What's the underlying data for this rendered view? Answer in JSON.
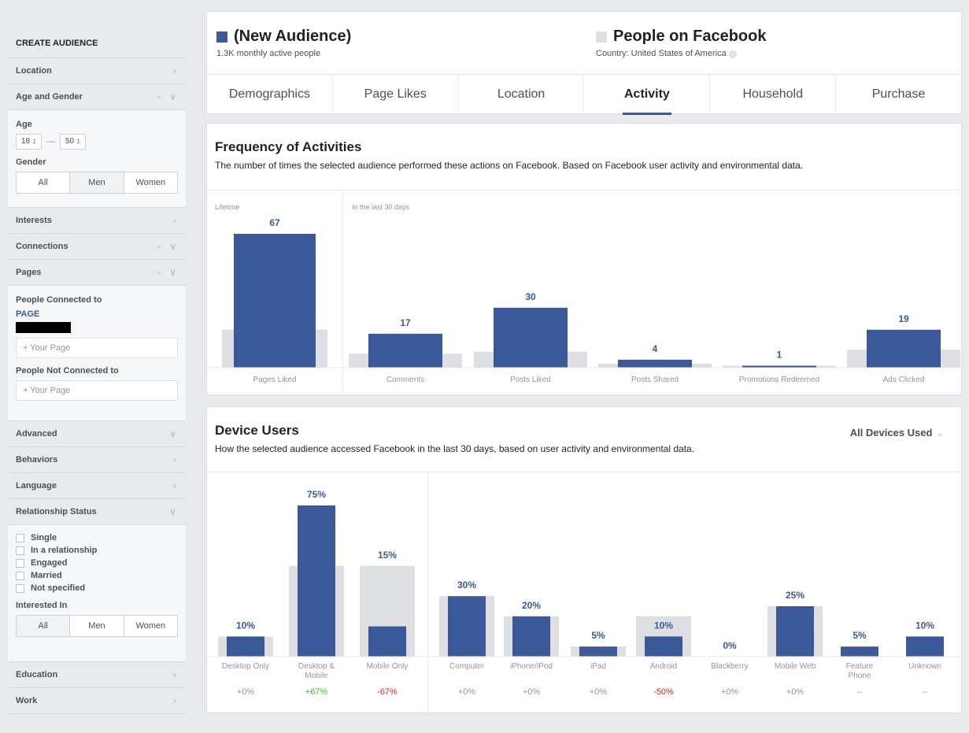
{
  "sidebar": {
    "title": "CREATE AUDIENCE",
    "location": "Location",
    "age_gender": "Age and Gender",
    "age_label": "Age",
    "age_min": "18",
    "age_max": "50",
    "gender_label": "Gender",
    "gender_options": [
      "All",
      "Men",
      "Women"
    ],
    "gender_selected": "Men",
    "interests": "Interests",
    "connections": "Connections",
    "pages": "Pages",
    "people_connected": "People Connected to",
    "page_link": "PAGE",
    "your_page_placeholder": "Your Page",
    "people_not_connected": "People Not Connected to",
    "advanced": "Advanced",
    "behaviors": "Behaviors",
    "language": "Language",
    "relationship_status": "Relationship Status",
    "relationship_options": [
      "Single",
      "In a relationship",
      "Engaged",
      "Married",
      "Not specified"
    ],
    "interested_in_label": "Interested In",
    "interested_options": [
      "All",
      "Men",
      "Women"
    ],
    "education": "Education",
    "work": "Work"
  },
  "header": {
    "audience_name": "(New Audience)",
    "audience_sub": "1.3K monthly active people",
    "audience_color": "#3b5998",
    "compare_name": "People on Facebook",
    "compare_sub": "Country: United States of America",
    "compare_color": "#dddfe2"
  },
  "tabs": [
    "Demographics",
    "Page Likes",
    "Location",
    "Activity",
    "Household",
    "Purchase"
  ],
  "active_tab": "Activity",
  "frequency": {
    "title": "Frequency of Activities",
    "desc": "The number of times the selected audience performed these actions on Facebook. Based on Facebook user activity and environmental data."
  },
  "devices": {
    "title": "Device Users",
    "desc": "How the selected audience accessed Facebook in the last 30 days, based on user activity and environmental data.",
    "dropdown": "All Devices Used"
  },
  "chart_data": [
    {
      "type": "bar",
      "groups": [
        {
          "label": "Lifetime",
          "categories": [
            "Pages Liked"
          ]
        },
        {
          "label": "In the last 30 days",
          "categories": [
            "Comments",
            "Posts Liked",
            "Posts Shared",
            "Promotions Redeemed",
            "Ads Clicked"
          ]
        }
      ],
      "categories": [
        "Pages Liked",
        "Comments",
        "Posts Liked",
        "Posts Shared",
        "Promotions Redeemed",
        "Ads Clicked"
      ],
      "series": [
        {
          "values": [
            67,
            17,
            30,
            4,
            1,
            19
          ],
          "color": "#3b5998"
        },
        {
          "values": [
            19,
            7,
            8,
            2,
            1,
            9
          ],
          "color": "#dddfe2"
        }
      ],
      "data_labels": [
        "67",
        "17",
        "30",
        "4",
        "1",
        "19"
      ]
    },
    {
      "type": "bar",
      "groups": [
        {
          "categories": [
            "Desktop Only",
            "Desktop & Mobile",
            "Mobile Only"
          ]
        },
        {
          "categories": [
            "Computer",
            "iPhone/iPod",
            "iPad",
            "Android",
            "Blackberry",
            "Mobile Web",
            "Feature Phone",
            "Unknown"
          ]
        }
      ],
      "categories": [
        "Desktop Only",
        "Desktop & Mobile",
        "Mobile Only",
        "Computer",
        "iPhone/iPod",
        "iPad",
        "Android",
        "Blackberry",
        "Mobile Web",
        "Feature Phone",
        "Unknown"
      ],
      "series": [
        {
          "values": [
            10,
            75,
            15,
            30,
            20,
            5,
            10,
            0,
            25,
            5,
            10
          ],
          "color": "#3b5998"
        },
        {
          "values": [
            10,
            45,
            45,
            30,
            20,
            5,
            20,
            0,
            25,
            0,
            0
          ],
          "color": "#dddfe2"
        }
      ],
      "data_labels": [
        "10%",
        "75%",
        "15%",
        "30%",
        "20%",
        "5%",
        "10%",
        "0%",
        "25%",
        "5%",
        "10%"
      ],
      "diffs": [
        "+0%",
        "+67%",
        "-67%",
        "+0%",
        "+0%",
        "+0%",
        "-50%",
        "+0%",
        "+0%",
        "--",
        "--"
      ],
      "diff_colors": {
        "positive": "#42b72a",
        "negative": "#e02020",
        "neutral": "#90949c"
      }
    }
  ]
}
